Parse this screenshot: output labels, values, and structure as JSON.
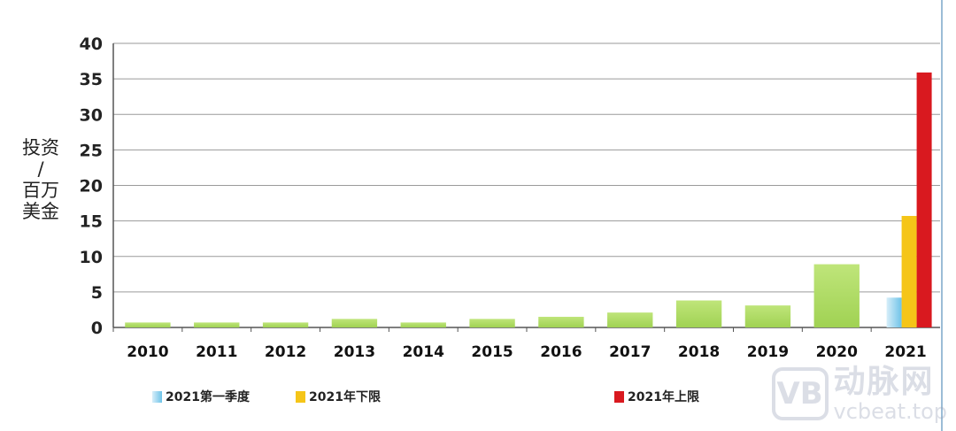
{
  "chart_data": {
    "type": "bar",
    "ylabel": "投资\n/\n百万\n美金",
    "ylim": [
      0,
      40
    ],
    "yticks": [
      0,
      5,
      10,
      15,
      20,
      25,
      30,
      35,
      40
    ],
    "categories": [
      "2010",
      "2011",
      "2012",
      "2013",
      "2014",
      "2015",
      "2016",
      "2017",
      "2018",
      "2019",
      "2020",
      "2021"
    ],
    "series": [
      {
        "name": "",
        "color": "#a6d55a",
        "values": [
          0.7,
          0.7,
          0.7,
          1.2,
          0.7,
          1.2,
          1.5,
          2.1,
          3.8,
          3.1,
          8.9,
          null
        ]
      },
      {
        "name": "2021第一季度",
        "color": "#6ec3e8",
        "values": [
          null,
          null,
          null,
          null,
          null,
          null,
          null,
          null,
          null,
          null,
          null,
          4.2
        ]
      },
      {
        "name": "2021年下限",
        "color": "#f5c518",
        "values": [
          null,
          null,
          null,
          null,
          null,
          null,
          null,
          null,
          null,
          null,
          null,
          15.7
        ]
      },
      {
        "name": "2021年上限",
        "color": "#d9191f",
        "values": [
          null,
          null,
          null,
          null,
          null,
          null,
          null,
          null,
          null,
          null,
          null,
          35.9
        ]
      }
    ],
    "grid": true,
    "legend_position": "bottom"
  },
  "ylabel_lines": [
    "投资",
    "/",
    "百万",
    "美金"
  ],
  "legend": [
    {
      "label": "2021第一季度",
      "color": "#6ec3e8"
    },
    {
      "label": "2021年下限",
      "color": "#f5c518"
    },
    {
      "label": "2021年上限",
      "color": "#d9191f"
    }
  ],
  "watermark": {
    "logo_letter": "VB",
    "name": "动脉网",
    "url": "vcbeat.top"
  }
}
